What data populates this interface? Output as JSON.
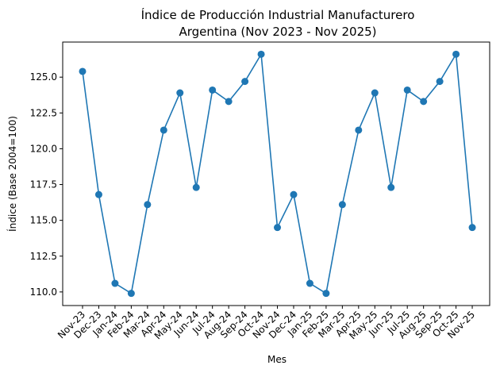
{
  "chart_data": {
    "type": "line",
    "title": [
      "Índice de Producción Industrial Manufacturero",
      "Argentina (Nov 2023 - Nov 2025)"
    ],
    "xlabel": "Mes",
    "ylabel": "Índice (Base 2004=100)",
    "categories": [
      "Nov-23",
      "Dec-23",
      "Jan-24",
      "Feb-24",
      "Mar-24",
      "Apr-24",
      "May-24",
      "Jun-24",
      "Jul-24",
      "Aug-24",
      "Sep-24",
      "Oct-24",
      "Nov-24",
      "Dec-24",
      "Jan-25",
      "Feb-25",
      "Mar-25",
      "Apr-25",
      "May-25",
      "Jun-25",
      "Jul-25",
      "Aug-25",
      "Sep-25",
      "Oct-25",
      "Nov-25"
    ],
    "values": [
      125.4,
      116.8,
      110.6,
      109.9,
      116.1,
      121.3,
      123.9,
      117.3,
      124.1,
      123.3,
      124.7,
      126.6,
      114.5,
      116.8,
      110.6,
      109.9,
      116.1,
      121.3,
      123.9,
      117.3,
      124.1,
      123.3,
      124.7,
      126.6,
      114.5
    ],
    "ylim": [
      109.05,
      127.45
    ],
    "yticks": [
      "110.0",
      "112.5",
      "115.0",
      "117.5",
      "120.0",
      "122.5",
      "125.0"
    ],
    "grid": false,
    "color": "#1f77b4"
  }
}
